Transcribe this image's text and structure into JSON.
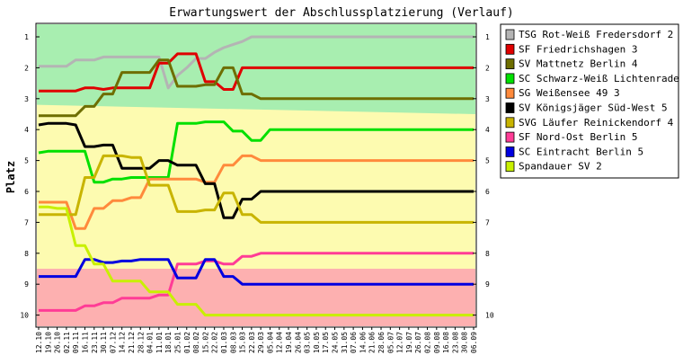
{
  "chart_data": {
    "type": "line",
    "title": "Erwartungswert der Abschlussplatzierung (Verlauf)",
    "ylabel": "Platz",
    "xlabel": "",
    "ylim": [
      1,
      10
    ],
    "y_inverted": true,
    "y_ticks": [
      1,
      2,
      3,
      4,
      5,
      6,
      7,
      8,
      9,
      10
    ],
    "x": [
      "12.10",
      "19.10",
      "26.10",
      "02.11",
      "09.11",
      "16.11",
      "23.11",
      "30.11",
      "07.12",
      "14.12",
      "21.12",
      "28.12",
      "04.01",
      "11.01",
      "18.01",
      "25.01",
      "01.02",
      "08.02",
      "15.02",
      "22.02",
      "01.03",
      "08.03",
      "15.03",
      "22.03",
      "29.03",
      "05.04",
      "12.04",
      "19.04",
      "26.04",
      "03.05",
      "10.05",
      "17.05",
      "24.05",
      "31.05",
      "07.06",
      "14.06",
      "21.06",
      "28.06",
      "05.07",
      "12.07",
      "19.07",
      "26.07",
      "02.08",
      "09.08",
      "16.08",
      "23.08",
      "30.08",
      "06.09"
    ],
    "background_zones": [
      {
        "name": "promotion",
        "color": "#a8eeb0",
        "from": 0.5,
        "to_start": 3.2,
        "to_end": 3.5
      },
      {
        "name": "middle",
        "color": "#fdfbb0",
        "from_start": 3.2,
        "from_end": 3.5,
        "to_start": 8.5,
        "to_end": 8.5
      },
      {
        "name": "relegation",
        "color": "#fdb0b0",
        "from": 8.5,
        "to": 10.5
      }
    ],
    "legend_position": "right",
    "series": [
      {
        "name": "TSG Rot-Weiß Fredersdorf 2",
        "color": "#b4b4b4",
        "values": [
          1.95,
          1.95,
          1.95,
          1.95,
          1.75,
          1.75,
          1.75,
          1.65,
          1.65,
          1.65,
          1.65,
          1.65,
          1.65,
          1.65,
          2.65,
          2.25,
          2.0,
          1.7,
          1.7,
          1.5,
          1.35,
          1.25,
          1.15,
          1.0,
          1.0,
          1.0,
          1.0,
          1.0,
          1.0,
          1.0,
          1.0,
          1.0,
          1.0,
          1.0,
          1.0,
          1.0,
          1.0,
          1.0,
          1.0,
          1.0,
          1.0,
          1.0,
          1.0,
          1.0,
          1.0,
          1.0,
          1.0,
          1.0
        ]
      },
      {
        "name": "SF Friedrichshagen 3",
        "color": "#e00000",
        "values": [
          2.75,
          2.75,
          2.75,
          2.75,
          2.75,
          2.65,
          2.65,
          2.7,
          2.65,
          2.65,
          2.65,
          2.65,
          2.65,
          1.85,
          1.85,
          1.55,
          1.55,
          1.55,
          2.45,
          2.45,
          2.7,
          2.7,
          2.0,
          2.0,
          2.0,
          2.0,
          2.0,
          2.0,
          2.0,
          2.0,
          2.0,
          2.0,
          2.0,
          2.0,
          2.0,
          2.0,
          2.0,
          2.0,
          2.0,
          2.0,
          2.0,
          2.0,
          2.0,
          2.0,
          2.0,
          2.0,
          2.0,
          2.0
        ]
      },
      {
        "name": "SV Mattnetz Berlin 4",
        "color": "#6e6e00",
        "values": [
          3.55,
          3.55,
          3.55,
          3.55,
          3.55,
          3.25,
          3.25,
          2.85,
          2.85,
          2.15,
          2.15,
          2.15,
          2.15,
          1.75,
          1.75,
          2.6,
          2.6,
          2.6,
          2.55,
          2.55,
          2.0,
          2.0,
          2.85,
          2.85,
          3.0,
          3.0,
          3.0,
          3.0,
          3.0,
          3.0,
          3.0,
          3.0,
          3.0,
          3.0,
          3.0,
          3.0,
          3.0,
          3.0,
          3.0,
          3.0,
          3.0,
          3.0,
          3.0,
          3.0,
          3.0,
          3.0,
          3.0,
          3.0
        ]
      },
      {
        "name": "SC Schwarz-Weiß Lichtenrade 3",
        "color": "#00e000",
        "values": [
          4.75,
          4.7,
          4.7,
          4.7,
          4.7,
          4.7,
          5.7,
          5.7,
          5.6,
          5.6,
          5.55,
          5.55,
          5.55,
          5.55,
          5.55,
          3.8,
          3.8,
          3.8,
          3.75,
          3.75,
          3.75,
          4.05,
          4.05,
          4.35,
          4.35,
          4.0,
          4.0,
          4.0,
          4.0,
          4.0,
          4.0,
          4.0,
          4.0,
          4.0,
          4.0,
          4.0,
          4.0,
          4.0,
          4.0,
          4.0,
          4.0,
          4.0,
          4.0,
          4.0,
          4.0,
          4.0,
          4.0,
          4.0
        ]
      },
      {
        "name": "SG Weißensee 49 3",
        "color": "#ff8a3c",
        "values": [
          6.35,
          6.35,
          6.35,
          6.35,
          7.2,
          7.2,
          6.55,
          6.55,
          6.3,
          6.3,
          6.2,
          6.2,
          5.6,
          5.6,
          5.6,
          5.6,
          5.6,
          5.6,
          5.7,
          5.7,
          5.15,
          5.15,
          4.85,
          4.85,
          5.0,
          5.0,
          5.0,
          5.0,
          5.0,
          5.0,
          5.0,
          5.0,
          5.0,
          5.0,
          5.0,
          5.0,
          5.0,
          5.0,
          5.0,
          5.0,
          5.0,
          5.0,
          5.0,
          5.0,
          5.0,
          5.0,
          5.0,
          5.0
        ]
      },
      {
        "name": "SV Königsjäger Süd-West 5",
        "color": "#000000",
        "values": [
          3.85,
          3.8,
          3.8,
          3.8,
          3.85,
          4.55,
          4.55,
          4.5,
          4.5,
          5.25,
          5.25,
          5.25,
          5.25,
          5.0,
          5.0,
          5.15,
          5.15,
          5.15,
          5.75,
          5.75,
          6.85,
          6.85,
          6.25,
          6.25,
          6.0,
          6.0,
          6.0,
          6.0,
          6.0,
          6.0,
          6.0,
          6.0,
          6.0,
          6.0,
          6.0,
          6.0,
          6.0,
          6.0,
          6.0,
          6.0,
          6.0,
          6.0,
          6.0,
          6.0,
          6.0,
          6.0,
          6.0,
          6.0
        ]
      },
      {
        "name": "SVG Läufer Reinickendorf 4",
        "color": "#c8b400",
        "values": [
          6.75,
          6.75,
          6.75,
          6.75,
          6.75,
          5.55,
          5.55,
          4.85,
          4.85,
          4.85,
          4.9,
          4.9,
          5.8,
          5.8,
          5.8,
          6.65,
          6.65,
          6.65,
          6.6,
          6.6,
          6.05,
          6.05,
          6.75,
          6.75,
          7.0,
          7.0,
          7.0,
          7.0,
          7.0,
          7.0,
          7.0,
          7.0,
          7.0,
          7.0,
          7.0,
          7.0,
          7.0,
          7.0,
          7.0,
          7.0,
          7.0,
          7.0,
          7.0,
          7.0,
          7.0,
          7.0,
          7.0,
          7.0
        ]
      },
      {
        "name": "SF Nord-Ost Berlin 5",
        "color": "#ff3c96",
        "values": [
          9.85,
          9.85,
          9.85,
          9.85,
          9.85,
          9.7,
          9.7,
          9.6,
          9.6,
          9.45,
          9.45,
          9.45,
          9.45,
          9.35,
          9.35,
          8.35,
          8.35,
          8.35,
          8.25,
          8.25,
          8.35,
          8.35,
          8.1,
          8.1,
          8.0,
          8.0,
          8.0,
          8.0,
          8.0,
          8.0,
          8.0,
          8.0,
          8.0,
          8.0,
          8.0,
          8.0,
          8.0,
          8.0,
          8.0,
          8.0,
          8.0,
          8.0,
          8.0,
          8.0,
          8.0,
          8.0,
          8.0,
          8.0
        ]
      },
      {
        "name": "SC Eintracht Berlin 5",
        "color": "#0000e0",
        "values": [
          8.75,
          8.75,
          8.75,
          8.75,
          8.75,
          8.2,
          8.2,
          8.3,
          8.3,
          8.25,
          8.25,
          8.2,
          8.2,
          8.2,
          8.2,
          8.8,
          8.8,
          8.8,
          8.2,
          8.2,
          8.75,
          8.75,
          9.0,
          9.0,
          9.0,
          9.0,
          9.0,
          9.0,
          9.0,
          9.0,
          9.0,
          9.0,
          9.0,
          9.0,
          9.0,
          9.0,
          9.0,
          9.0,
          9.0,
          9.0,
          9.0,
          9.0,
          9.0,
          9.0,
          9.0,
          9.0,
          9.0,
          9.0
        ]
      },
      {
        "name": "Spandauer SV 2",
        "color": "#c8f000",
        "values": [
          6.5,
          6.5,
          6.55,
          6.55,
          7.75,
          7.75,
          8.35,
          8.35,
          8.9,
          8.9,
          8.9,
          8.9,
          9.25,
          9.25,
          9.25,
          9.65,
          9.65,
          9.65,
          10.0,
          10.0,
          10.0,
          10.0,
          10.0,
          10.0,
          10.0,
          10.0,
          10.0,
          10.0,
          10.0,
          10.0,
          10.0,
          10.0,
          10.0,
          10.0,
          10.0,
          10.0,
          10.0,
          10.0,
          10.0,
          10.0,
          10.0,
          10.0,
          10.0,
          10.0,
          10.0,
          10.0,
          10.0,
          10.0
        ]
      }
    ]
  }
}
